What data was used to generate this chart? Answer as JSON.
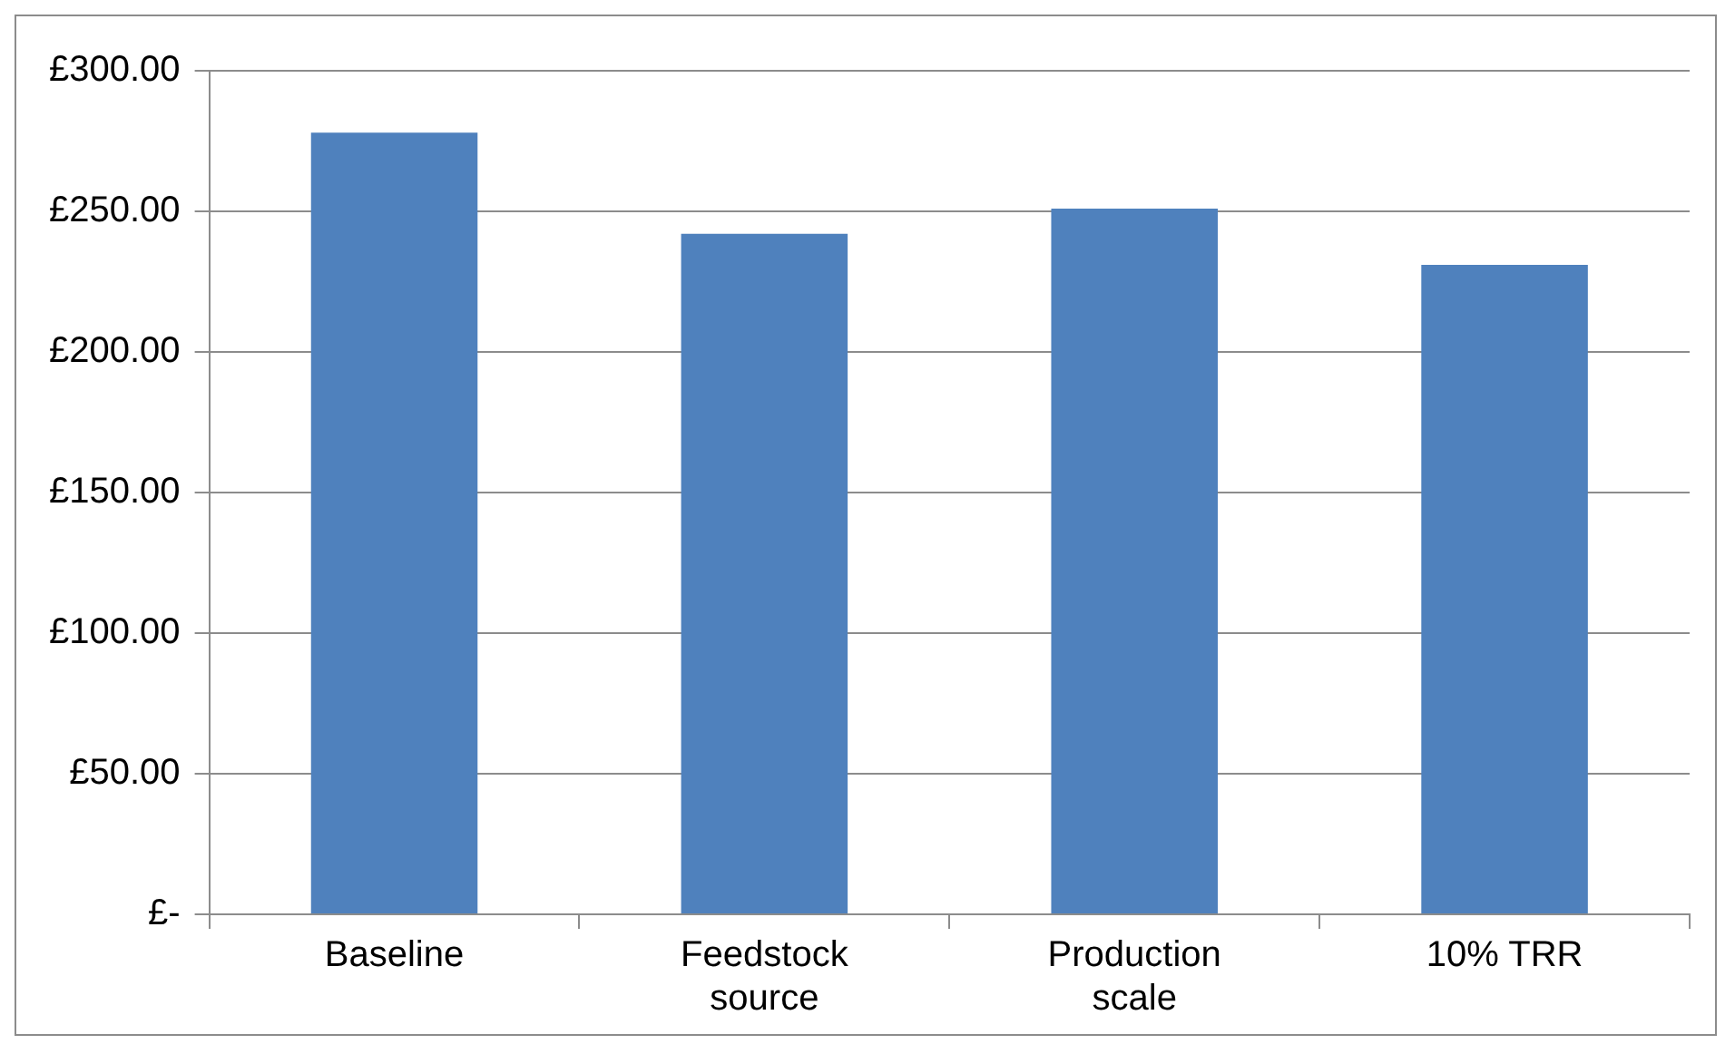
{
  "chart_data": {
    "type": "bar",
    "categories": [
      "Baseline",
      "Feedstock source",
      "Production scale",
      "10% TRR"
    ],
    "values": [
      278,
      242,
      251,
      231
    ],
    "color": "#4f81bd",
    "ylim": [
      0,
      300
    ],
    "yticks": [
      {
        "value": 0,
        "label": "£-"
      },
      {
        "value": 50,
        "label": "£50.00"
      },
      {
        "value": 100,
        "label": "£100.00"
      },
      {
        "value": 150,
        "label": "£150.00"
      },
      {
        "value": 200,
        "label": "£200.00"
      },
      {
        "value": 250,
        "label": "£250.00"
      },
      {
        "value": 300,
        "label": "£300.00"
      }
    ],
    "grid": "y",
    "legend": false
  }
}
